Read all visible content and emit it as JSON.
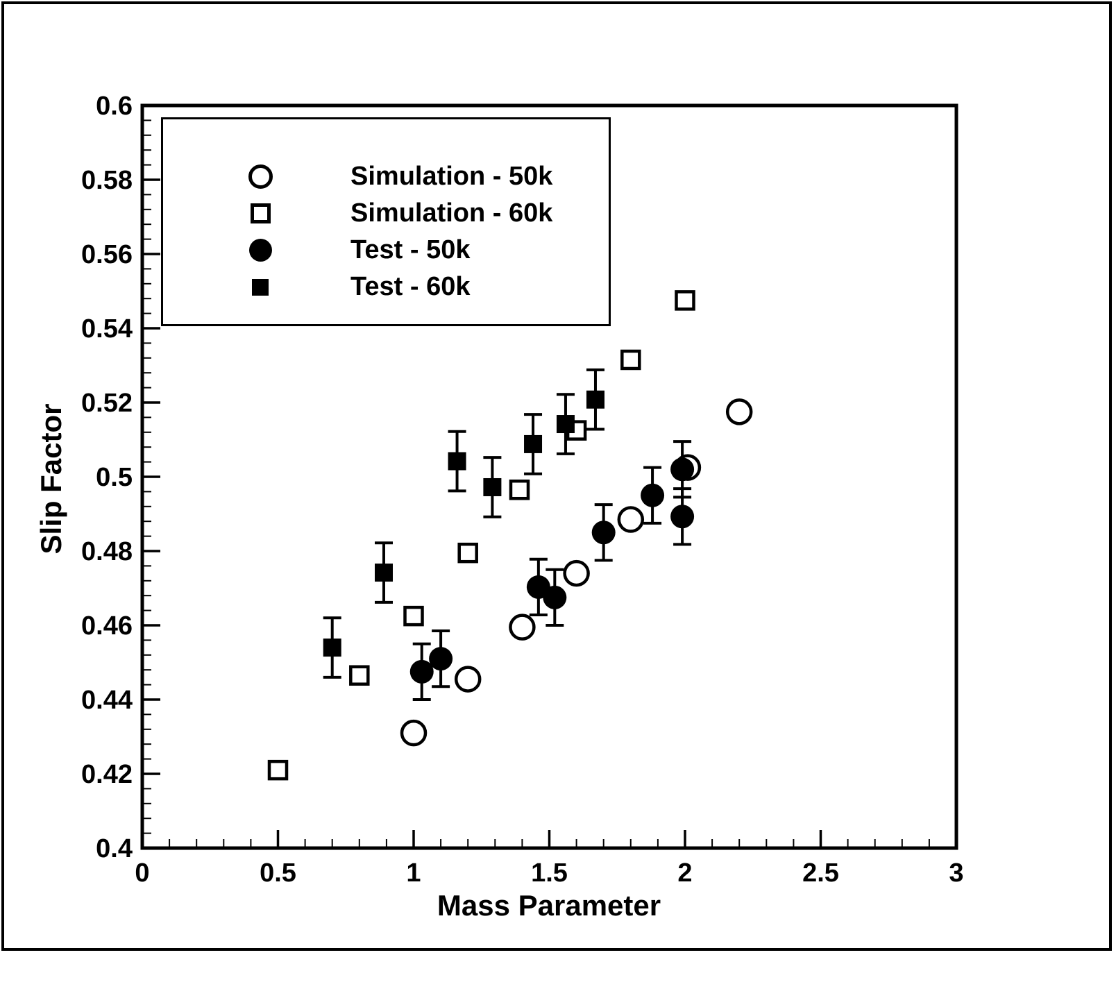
{
  "chart_data": {
    "type": "scatter",
    "title": "",
    "xlabel": "Mass Parameter",
    "ylabel": "Slip Factor",
    "xlim": [
      0,
      3
    ],
    "ylim": [
      0.4,
      0.6
    ],
    "grid": false,
    "legend_position": "top-left",
    "x_ticks": {
      "values": [
        0,
        0.5,
        1,
        1.5,
        2,
        2.5,
        3
      ],
      "labels": [
        "0",
        "0.5",
        "1",
        "1.5",
        "2",
        "2.5",
        "3"
      ],
      "minor_step": 0.1
    },
    "y_ticks": {
      "values": [
        0.4,
        0.42,
        0.44,
        0.46,
        0.48,
        0.5,
        0.52,
        0.54,
        0.56,
        0.58,
        0.6
      ],
      "labels": [
        "0.4",
        "0.42",
        "0.44",
        "0.46",
        "0.48",
        "0.5",
        "0.52",
        "0.54",
        "0.56",
        "0.58",
        "0.6"
      ],
      "minor_step": 0.004
    },
    "series": [
      {
        "name": "Simulation - 50k",
        "marker": "open-circle",
        "error_bar": null,
        "points": [
          [
            1.0,
            0.431
          ],
          [
            1.2,
            0.4455
          ],
          [
            1.4,
            0.4595
          ],
          [
            1.6,
            0.474
          ],
          [
            1.8,
            0.4885
          ],
          [
            2.01,
            0.5025
          ],
          [
            2.2,
            0.5175
          ]
        ]
      },
      {
        "name": "Simulation - 60k",
        "marker": "open-square",
        "error_bar": null,
        "points": [
          [
            0.5,
            0.421
          ],
          [
            0.8,
            0.4465
          ],
          [
            1.0,
            0.4625
          ],
          [
            1.2,
            0.4795
          ],
          [
            1.39,
            0.4965
          ],
          [
            1.6,
            0.5125
          ],
          [
            1.8,
            0.5315
          ],
          [
            2.0,
            0.5475
          ]
        ]
      },
      {
        "name": "Test - 50k",
        "marker": "filled-circle",
        "error_bar": 0.0075,
        "points": [
          [
            1.03,
            0.4475
          ],
          [
            1.1,
            0.451
          ],
          [
            1.46,
            0.4703
          ],
          [
            1.52,
            0.4675
          ],
          [
            1.7,
            0.485
          ],
          [
            1.88,
            0.495
          ],
          [
            1.99,
            0.502
          ],
          [
            1.99,
            0.4893
          ]
        ]
      },
      {
        "name": "Test - 60k",
        "marker": "filled-square",
        "error_bar": 0.008,
        "points": [
          [
            0.7,
            0.454
          ],
          [
            0.89,
            0.4742
          ],
          [
            1.16,
            0.5042
          ],
          [
            1.29,
            0.4972
          ],
          [
            1.44,
            0.5088
          ],
          [
            1.56,
            0.5142
          ],
          [
            1.67,
            0.5208
          ]
        ]
      }
    ],
    "colors": {
      "foreground": "#000000",
      "background": "#ffffff"
    }
  }
}
